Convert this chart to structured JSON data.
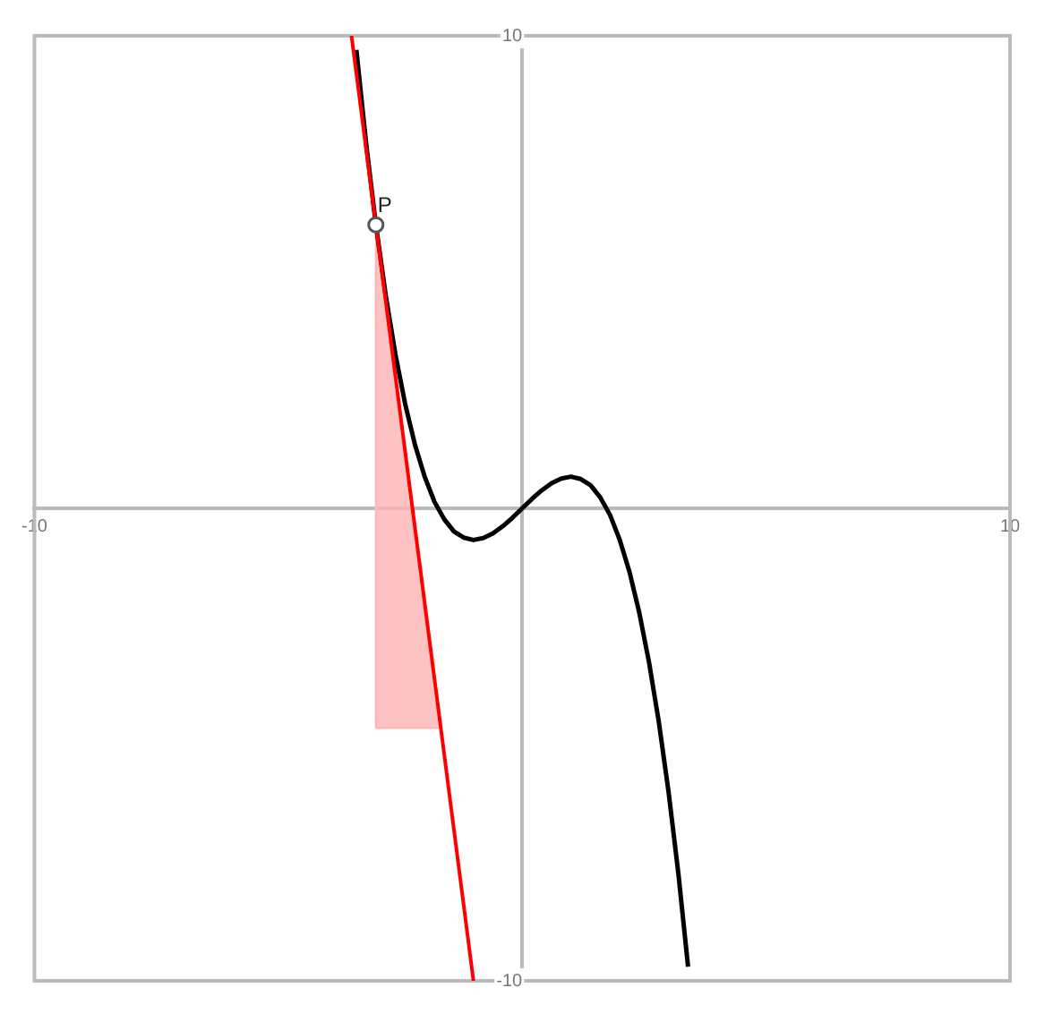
{
  "chart_data": {
    "type": "line",
    "xlim": [
      -10,
      10
    ],
    "ylim": [
      -10,
      10
    ],
    "xticks": [
      -10,
      10
    ],
    "yticks": [
      -10,
      10
    ],
    "legend": false,
    "annotations": [
      {
        "text": "P",
        "x": -3,
        "y": 6
      }
    ],
    "series": [
      {
        "type": "line",
        "color": "#000000",
        "x": [
          -3.4,
          -3.2,
          -3,
          -2.8,
          -2.6,
          -2.4,
          -2.2,
          -2,
          -1.8,
          -1.6,
          -1.4,
          -1.2,
          -1,
          -0.8,
          -0.6,
          -0.4,
          -0.2,
          0,
          0.2,
          0.4,
          0.6,
          0.8,
          1,
          1.2,
          1.4,
          1.6,
          1.8,
          2,
          2.2,
          2.4,
          2.6,
          2.8,
          3,
          3.2,
          3.4
        ],
        "values": [
          9.7,
          7.72,
          6,
          4.52,
          3.26,
          2.21,
          1.35,
          0.67,
          0.14,
          -0.23,
          -0.49,
          -0.62,
          -0.67,
          -0.63,
          -0.53,
          -0.38,
          -0.2,
          0,
          0.2,
          0.38,
          0.53,
          0.63,
          0.67,
          0.62,
          0.49,
          0.23,
          -0.14,
          -0.67,
          -1.35,
          -2.21,
          -3.26,
          -4.52,
          -6,
          -7.72,
          -9.7
        ]
      },
      {
        "type": "area",
        "color": "#ffb3b3",
        "x": [
          -3,
          -3,
          -1.67,
          -3
        ],
        "values": [
          6,
          -4.65,
          -4.65,
          6
        ]
      },
      {
        "type": "line",
        "color": "#ff0000",
        "x": [
          -3.5,
          -1
        ],
        "values": [
          10,
          -10
        ]
      },
      {
        "type": "scatter",
        "color": "#555555",
        "marker": "circle",
        "x": [
          -3
        ],
        "values": [
          6
        ]
      }
    ]
  }
}
